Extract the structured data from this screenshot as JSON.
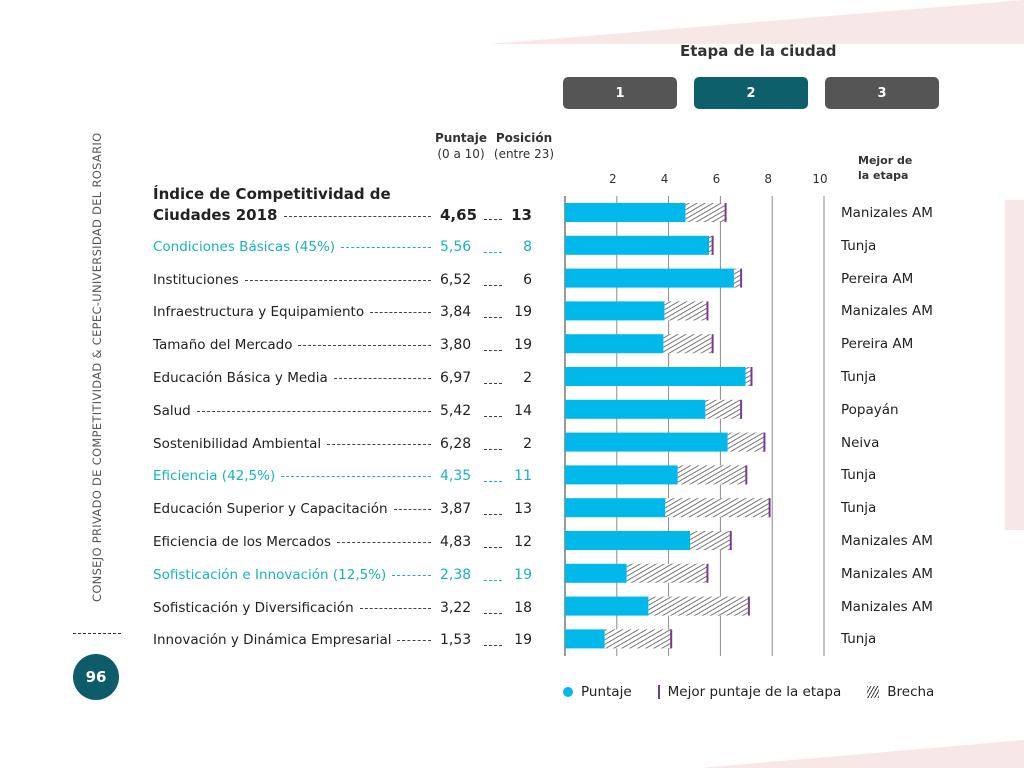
{
  "sidebar": {
    "publisher": "CONSEJO PRIVADO DE COMPETITIVIDAD & CEPEC-UNIVERSIDAD DEL ROSARIO",
    "page_number": "96"
  },
  "stage": {
    "title": "Etapa de la ciudad",
    "options": [
      "1",
      "2",
      "3"
    ],
    "selected": "2"
  },
  "headers": {
    "score_title": "Puntaje",
    "score_sub": "(0 a 10)",
    "position_title": "Posición",
    "position_sub": "(entre 23)",
    "best_line1": "Mejor de",
    "best_line2": "la etapa"
  },
  "main_title": "Índice de Competitividad de",
  "colors": {
    "bar": "#00b9ea",
    "teal_text": "#17b3be",
    "best_marker": "#7b3b8c",
    "active_stage": "#0d5f6b",
    "badge": "#0e5c6a"
  },
  "legend": {
    "score": "Puntaje",
    "best": "Mejor puntaje de la etapa",
    "gap": "Brecha"
  },
  "chart_data": {
    "type": "bar",
    "orientation": "horizontal",
    "xlim": [
      0,
      10
    ],
    "xticks": [
      "2",
      "4",
      "6",
      "8",
      "10"
    ],
    "grid": true,
    "categories": [
      "Ciudades 2018",
      "Condiciones Básicas (45%)",
      "Instituciones",
      "Infraestructura y Equipamiento",
      "Tamaño del Mercado",
      "Educación Básica y Media",
      "Salud",
      "Sostenibilidad Ambiental",
      "Eficiencia (42,5%)",
      "Educación Superior y Capacitación",
      "Eficiencia de los Mercados",
      "Sofisticación e Innovación (12,5%)",
      "Sofisticación y Diversificación",
      "Innovación y Dinámica Empresarial"
    ],
    "series": [
      {
        "name": "Puntaje",
        "values": [
          4.65,
          5.56,
          6.52,
          3.84,
          3.8,
          6.97,
          5.42,
          6.28,
          4.35,
          3.87,
          4.83,
          2.38,
          3.22,
          1.53
        ]
      },
      {
        "name": "Mejor puntaje de la etapa",
        "values": [
          6.2,
          5.7,
          6.8,
          5.5,
          5.7,
          7.2,
          6.8,
          7.7,
          7.0,
          7.9,
          6.4,
          5.5,
          7.1,
          4.1
        ]
      }
    ],
    "scores_text": [
      "4,65",
      "5,56",
      "6,52",
      "3,84",
      "3,80",
      "6,97",
      "5,42",
      "6,28",
      "4,35",
      "3,87",
      "4,83",
      "2,38",
      "3,22",
      "1,53"
    ],
    "positions": [
      "13",
      "8",
      "6",
      "19",
      "19",
      "2",
      "14",
      "2",
      "11",
      "13",
      "12",
      "19",
      "18",
      "19"
    ],
    "best_city": [
      "Manizales AM",
      "Tunja",
      "Pereira AM",
      "Manizales AM",
      "Pereira AM",
      "Tunja",
      "Popayán",
      "Neiva",
      "Tunja",
      "Tunja",
      "Manizales AM",
      "Manizales AM",
      "Manizales AM",
      "Tunja"
    ],
    "highlight": [
      true,
      true,
      false,
      false,
      false,
      false,
      false,
      false,
      true,
      false,
      false,
      true,
      false,
      false
    ]
  }
}
